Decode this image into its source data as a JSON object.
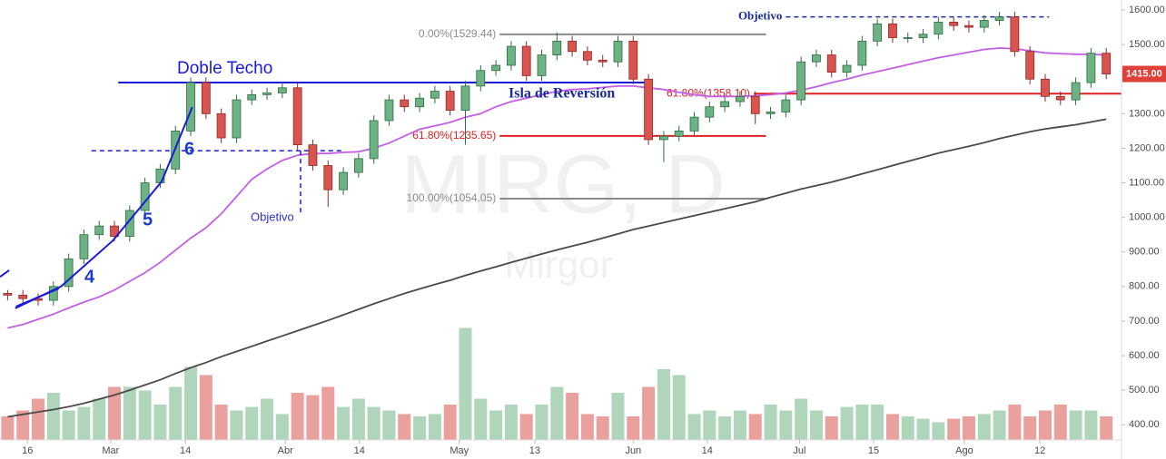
{
  "chart_data": {
    "type": "candlestick",
    "watermark": {
      "symbol": "MIRG, D",
      "name": "Mirgor"
    },
    "x": [
      1,
      3,
      5,
      7,
      9,
      11,
      13,
      15,
      17,
      19,
      21,
      23,
      25,
      27,
      29,
      31,
      33,
      35,
      37,
      39,
      41,
      43,
      45,
      47,
      49,
      51,
      53,
      55,
      57,
      59,
      61,
      63,
      65,
      67,
      69,
      71,
      73,
      75,
      77,
      79,
      81,
      83,
      85,
      87,
      89,
      91,
      93,
      95,
      97,
      99,
      101,
      103,
      105,
      107,
      109,
      111,
      113,
      115,
      117,
      119,
      121,
      123,
      125,
      127,
      129,
      131,
      133,
      135,
      137,
      139,
      141,
      143,
      145
    ],
    "open": [
      780,
      775,
      765,
      760,
      800,
      880,
      950,
      975,
      945,
      1020,
      1100,
      1140,
      1250,
      1390,
      1300,
      1230,
      1340,
      1355,
      1360,
      1375,
      1210,
      1150,
      1080,
      1130,
      1170,
      1280,
      1340,
      1320,
      1345,
      1365,
      1310,
      1380,
      1425,
      1440,
      1495,
      1410,
      1470,
      1510,
      1480,
      1455,
      1450,
      1510,
      1400,
      1225,
      1235,
      1250,
      1290,
      1320,
      1335,
      1350,
      1300,
      1305,
      1340,
      1450,
      1470,
      1420,
      1440,
      1510,
      1560,
      1520,
      1520,
      1530,
      1565,
      1555,
      1550,
      1570,
      1580,
      1480,
      1400,
      1350,
      1340,
      1390,
      1475
    ],
    "high": [
      790,
      790,
      780,
      815,
      895,
      965,
      990,
      990,
      1035,
      1115,
      1155,
      1265,
      1405,
      1405,
      1315,
      1355,
      1370,
      1375,
      1390,
      1390,
      1225,
      1165,
      1145,
      1185,
      1295,
      1355,
      1355,
      1360,
      1380,
      1380,
      1395,
      1440,
      1455,
      1510,
      1510,
      1485,
      1535,
      1525,
      1495,
      1470,
      1525,
      1525,
      1415,
      1250,
      1265,
      1305,
      1335,
      1350,
      1365,
      1365,
      1320,
      1355,
      1465,
      1485,
      1485,
      1455,
      1525,
      1575,
      1575,
      1535,
      1545,
      1580,
      1580,
      1570,
      1585,
      1595,
      1595,
      1495,
      1415,
      1365,
      1405,
      1490,
      1490
    ],
    "low": [
      760,
      750,
      745,
      745,
      785,
      865,
      935,
      930,
      930,
      1005,
      1085,
      1125,
      1235,
      1285,
      1215,
      1215,
      1325,
      1340,
      1345,
      1195,
      1135,
      1030,
      1065,
      1115,
      1155,
      1265,
      1305,
      1305,
      1330,
      1295,
      1210,
      1365,
      1410,
      1425,
      1395,
      1395,
      1455,
      1465,
      1440,
      1435,
      1435,
      1385,
      1210,
      1160,
      1220,
      1235,
      1275,
      1305,
      1320,
      1270,
      1285,
      1290,
      1325,
      1435,
      1405,
      1405,
      1425,
      1495,
      1505,
      1505,
      1505,
      1515,
      1540,
      1535,
      1535,
      1555,
      1465,
      1385,
      1335,
      1325,
      1325,
      1375,
      1400
    ],
    "close": [
      775,
      765,
      760,
      800,
      880,
      950,
      975,
      945,
      1020,
      1100,
      1140,
      1250,
      1390,
      1300,
      1230,
      1340,
      1355,
      1360,
      1375,
      1210,
      1150,
      1080,
      1130,
      1170,
      1280,
      1340,
      1320,
      1345,
      1365,
      1310,
      1380,
      1425,
      1440,
      1495,
      1410,
      1470,
      1510,
      1480,
      1455,
      1450,
      1510,
      1400,
      1225,
      1235,
      1250,
      1290,
      1320,
      1335,
      1350,
      1300,
      1305,
      1340,
      1450,
      1470,
      1420,
      1440,
      1510,
      1560,
      1520,
      1520,
      1530,
      1565,
      1555,
      1550,
      1570,
      1580,
      1480,
      1400,
      1350,
      1340,
      1390,
      1475,
      1415
    ],
    "volume": [
      20,
      25,
      35,
      40,
      25,
      28,
      35,
      45,
      45,
      42,
      30,
      45,
      62,
      55,
      30,
      25,
      28,
      35,
      22,
      40,
      38,
      45,
      28,
      35,
      28,
      25,
      22,
      20,
      22,
      30,
      95,
      35,
      25,
      30,
      22,
      30,
      45,
      40,
      22,
      20,
      40,
      20,
      45,
      60,
      55,
      22,
      25,
      20,
      25,
      22,
      30,
      25,
      35,
      25,
      20,
      28,
      30,
      30,
      22,
      20,
      18,
      15,
      18,
      20,
      22,
      25,
      30,
      20,
      25,
      30,
      25,
      25,
      20
    ],
    "vlim": [
      0,
      100
    ],
    "up_color": "#6db283",
    "down_color": "#d9534f",
    "ma": [
      {
        "color": "#c45ee8",
        "values": [
          680,
          690,
          705,
          720,
          738,
          755,
          770,
          790,
          815,
          840,
          870,
          905,
          940,
          970,
          1010,
          1060,
          1110,
          1140,
          1165,
          1180,
          1185,
          1185,
          1188,
          1190,
          1200,
          1215,
          1235,
          1255,
          1265,
          1275,
          1290,
          1300,
          1320,
          1335,
          1345,
          1355,
          1365,
          1370,
          1372,
          1376,
          1380,
          1380,
          1375,
          1370,
          1362,
          1355,
          1350,
          1350,
          1350,
          1352,
          1355,
          1360,
          1368,
          1378,
          1390,
          1400,
          1412,
          1422,
          1432,
          1442,
          1452,
          1462,
          1470,
          1478,
          1486,
          1490,
          1488,
          1482,
          1476,
          1474,
          1472,
          1472,
          1470
        ]
      },
      {
        "color": "#4a4a4a",
        "values": [
          423,
          430,
          437,
          444,
          452,
          462,
          474,
          486,
          500,
          515,
          530,
          548,
          565,
          580,
          597,
          612,
          627,
          642,
          657,
          672,
          687,
          702,
          718,
          734,
          750,
          765,
          780,
          793,
          806,
          818,
          832,
          845,
          857,
          870,
          882,
          894,
          906,
          917,
          928,
          940,
          952,
          965,
          975,
          985,
          995,
          1005,
          1015,
          1025,
          1035,
          1045,
          1058,
          1070,
          1082,
          1092,
          1102,
          1114,
          1126,
          1138,
          1150,
          1162,
          1174,
          1186,
          1196,
          1206,
          1216,
          1228,
          1238,
          1248,
          1256,
          1262,
          1268,
          1276,
          1284
        ]
      }
    ],
    "xlim": [
      0,
      147
    ],
    "ylim": [
      356,
      1629
    ],
    "xticks": [
      {
        "value": 3.6,
        "label": "16"
      },
      {
        "value": 14.5,
        "label": "Mar"
      },
      {
        "value": 24.3,
        "label": "14"
      },
      {
        "value": 37.4,
        "label": "Abr"
      },
      {
        "value": 47.1,
        "label": "14"
      },
      {
        "value": 60.2,
        "label": "May"
      },
      {
        "value": 70.1,
        "label": "13"
      },
      {
        "value": 83,
        "label": "Jun"
      },
      {
        "value": 92.7,
        "label": "14"
      },
      {
        "value": 104.8,
        "label": "Jul"
      },
      {
        "value": 114.5,
        "label": "15"
      },
      {
        "value": 126.4,
        "label": "Ago"
      },
      {
        "value": 136.3,
        "label": "12"
      }
    ],
    "yticks": [
      {
        "value": 400,
        "label": "400.00"
      },
      {
        "value": 500,
        "label": "500.00"
      },
      {
        "value": 600,
        "label": "600.00"
      },
      {
        "value": 700,
        "label": "700.00"
      },
      {
        "value": 800,
        "label": "800.00"
      },
      {
        "value": 900,
        "label": "900.00"
      },
      {
        "value": 1000,
        "label": "1000.00"
      },
      {
        "value": 1100,
        "label": "1100.00"
      },
      {
        "value": 1200,
        "label": "1200.00"
      },
      {
        "value": 1300,
        "label": "1300.00"
      },
      {
        "value": 1400,
        "label": "1400.00"
      },
      {
        "value": 1500,
        "label": "1500.00"
      },
      {
        "value": 1600,
        "label": "1600.00"
      }
    ],
    "last": {
      "value": 1415,
      "label": "1415.00",
      "color": "#e0403a"
    },
    "levels": [
      {
        "value": 1390,
        "x": [
          15.5,
          85
        ],
        "color": "#1a1adb",
        "dash": false
      },
      {
        "value": 1193,
        "x": [
          12,
          45
        ],
        "color": "#1a1adb",
        "dash": true
      },
      {
        "value": 1529.44,
        "x": [
          65.5,
          100.4
        ],
        "color": "#8a8a8a",
        "dash": false,
        "label": "0.00%(1529.44)"
      },
      {
        "value": 1235.65,
        "x": [
          65.5,
          100.4
        ],
        "color": "#e02020",
        "dash": false,
        "label": "61.80%(1235.65)"
      },
      {
        "value": 1054.05,
        "x": [
          65.5,
          100.4
        ],
        "color": "#8a8a8a",
        "dash": false,
        "label": "100.00%(1054.05)"
      },
      {
        "value": 1358.1,
        "x": [
          98.8,
          147
        ],
        "color": "#e02020",
        "dash": false,
        "label": "61.80%(1358.10)"
      },
      {
        "value": 1580,
        "x": [
          103,
          137.5
        ],
        "color": "#1a2a9c",
        "dash": true,
        "label": "Objetivo"
      }
    ],
    "trendlines": [
      {
        "x": [
          2.1,
          7.7
        ],
        "y": [
          742,
          794
        ],
        "color": "#1a1adb",
        "dash": false
      },
      {
        "x": [
          2,
          8,
          14.8,
          21.2,
          25.2
        ],
        "y": [
          737,
          800,
          933,
          1104,
          1319
        ],
        "color": "#1a1adb",
        "dash": false
      },
      {
        "x": [
          0,
          1.2
        ],
        "y": [
          828,
          847
        ],
        "color": "#1a1adb",
        "dash": false
      },
      {
        "x": [
          39.4,
          39.4
        ],
        "y": [
          1193,
          1007
        ],
        "color": "#1a1adb",
        "dash": true
      }
    ],
    "annotations": [
      "Doble Techo",
      "6",
      "5",
      "4",
      "Objetivo",
      "Isla de Reversión"
    ]
  }
}
